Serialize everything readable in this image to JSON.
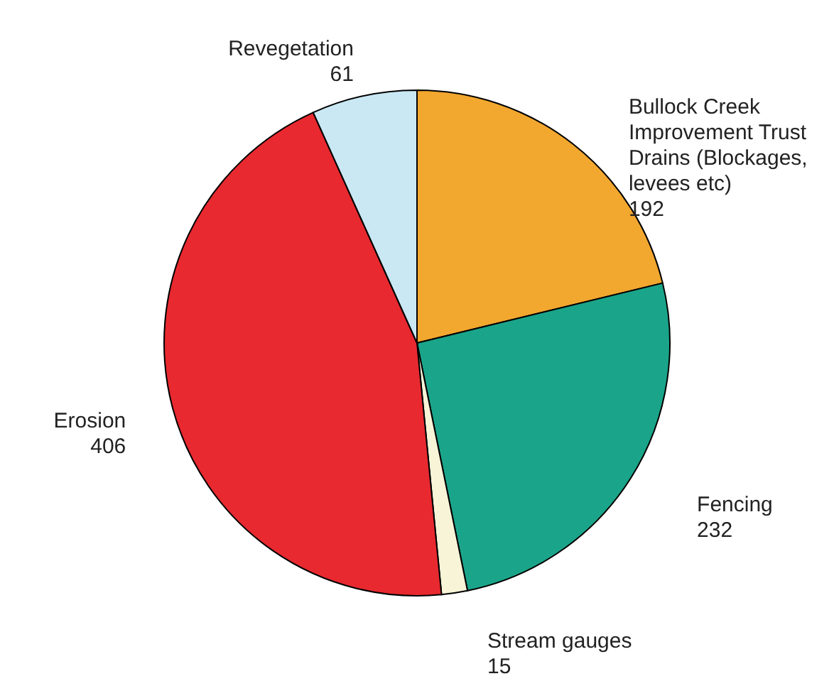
{
  "chart_data": {
    "type": "pie",
    "categories": [
      "Bullock Creek Improvement Trust Drains (Blockages, levees etc)",
      "Fencing",
      "Stream gauges",
      "Erosion",
      "Revegetation"
    ],
    "values": [
      192,
      232,
      15,
      406,
      61
    ],
    "colors": [
      "#f2a72e",
      "#1aa58a",
      "#f7f4d8",
      "#e8292f",
      "#c9e8f3"
    ],
    "data_labels": true
  }
}
